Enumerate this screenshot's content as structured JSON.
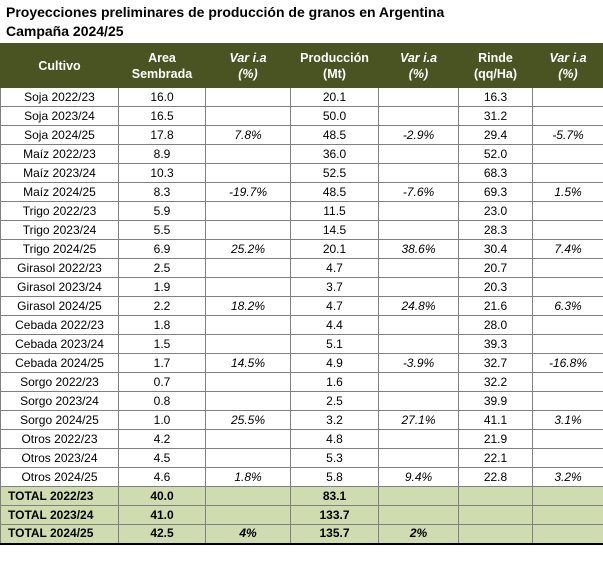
{
  "title": {
    "line1": "Proyecciones preliminares de producción de granos en Argentina",
    "line2": "Campaña 2024/25"
  },
  "colors": {
    "header_bg": "#4a5423",
    "header_text": "#ffffff",
    "total_bg": "#cfdcb0"
  },
  "table": {
    "headers": [
      {
        "label": "Cultivo",
        "sub": ""
      },
      {
        "label": "Area",
        "sub": "Sembrada"
      },
      {
        "label": "Var i.a",
        "sub": "(%)"
      },
      {
        "label": "Producción",
        "sub": "(Mt)"
      },
      {
        "label": "Var i.a",
        "sub": "(%)"
      },
      {
        "label": "Rinde",
        "sub": "(qq/Ha)"
      },
      {
        "label": "Var i.a",
        "sub": "(%)"
      }
    ]
  },
  "chart_data": {
    "type": "table",
    "title": "Proyecciones preliminares de producción de granos en Argentina — Campaña 2024/25",
    "columns": [
      "Cultivo",
      "Area Sembrada",
      "Var i.a (%)",
      "Producción (Mt)",
      "Var i.a (%)",
      "Rinde (qq/Ha)",
      "Var i.a (%)"
    ],
    "rows": [
      [
        "Soja 2022/23",
        "16.0",
        "",
        "20.1",
        "",
        "16.3",
        ""
      ],
      [
        "Soja 2023/24",
        "16.5",
        "",
        "50.0",
        "",
        "31.2",
        ""
      ],
      [
        "Soja 2024/25",
        "17.8",
        "7.8%",
        "48.5",
        "-2.9%",
        "29.4",
        "-5.7%"
      ],
      [
        "Maíz 2022/23",
        "8.9",
        "",
        "36.0",
        "",
        "52.0",
        ""
      ],
      [
        "Maíz 2023/24",
        "10.3",
        "",
        "52.5",
        "",
        "68.3",
        ""
      ],
      [
        "Maíz 2024/25",
        "8.3",
        "-19.7%",
        "48.5",
        "-7.6%",
        "69.3",
        "1.5%"
      ],
      [
        "Trigo 2022/23",
        "5.9",
        "",
        "11.5",
        "",
        "23.0",
        ""
      ],
      [
        "Trigo 2023/24",
        "5.5",
        "",
        "14.5",
        "",
        "28.3",
        ""
      ],
      [
        "Trigo 2024/25",
        "6.9",
        "25.2%",
        "20.1",
        "38.6%",
        "30.4",
        "7.4%"
      ],
      [
        "Girasol 2022/23",
        "2.5",
        "",
        "4.7",
        "",
        "20.7",
        ""
      ],
      [
        "Girasol 2023/24",
        "1.9",
        "",
        "3.7",
        "",
        "20.3",
        ""
      ],
      [
        "Girasol 2024/25",
        "2.2",
        "18.2%",
        "4.7",
        "24.8%",
        "21.6",
        "6.3%"
      ],
      [
        "Cebada 2022/23",
        "1.8",
        "",
        "4.4",
        "",
        "28.0",
        ""
      ],
      [
        "Cebada 2023/24",
        "1.5",
        "",
        "5.1",
        "",
        "39.3",
        ""
      ],
      [
        "Cebada 2024/25",
        "1.7",
        "14.5%",
        "4.9",
        "-3.9%",
        "32.7",
        "-16.8%"
      ],
      [
        "Sorgo 2022/23",
        "0.7",
        "",
        "1.6",
        "",
        "32.2",
        ""
      ],
      [
        "Sorgo 2023/24",
        "0.8",
        "",
        "2.5",
        "",
        "39.9",
        ""
      ],
      [
        "Sorgo 2024/25",
        "1.0",
        "25.5%",
        "3.2",
        "27.1%",
        "41.1",
        "3.1%"
      ],
      [
        "Otros 2022/23",
        "4.2",
        "",
        "4.8",
        "",
        "21.9",
        ""
      ],
      [
        "Otros 2023/24",
        "4.5",
        "",
        "5.3",
        "",
        "22.1",
        ""
      ],
      [
        "Otros 2024/25",
        "4.6",
        "1.8%",
        "5.8",
        "9.4%",
        "22.8",
        "3.2%"
      ]
    ],
    "totals": [
      [
        "TOTAL 2022/23",
        "40.0",
        "",
        "83.1",
        "",
        "",
        ""
      ],
      [
        "TOTAL 2023/24",
        "41.0",
        "",
        "133.7",
        "",
        "",
        ""
      ],
      [
        "TOTAL 2024/25",
        "42.5",
        "4%",
        "135.7",
        "2%",
        "",
        ""
      ]
    ]
  }
}
